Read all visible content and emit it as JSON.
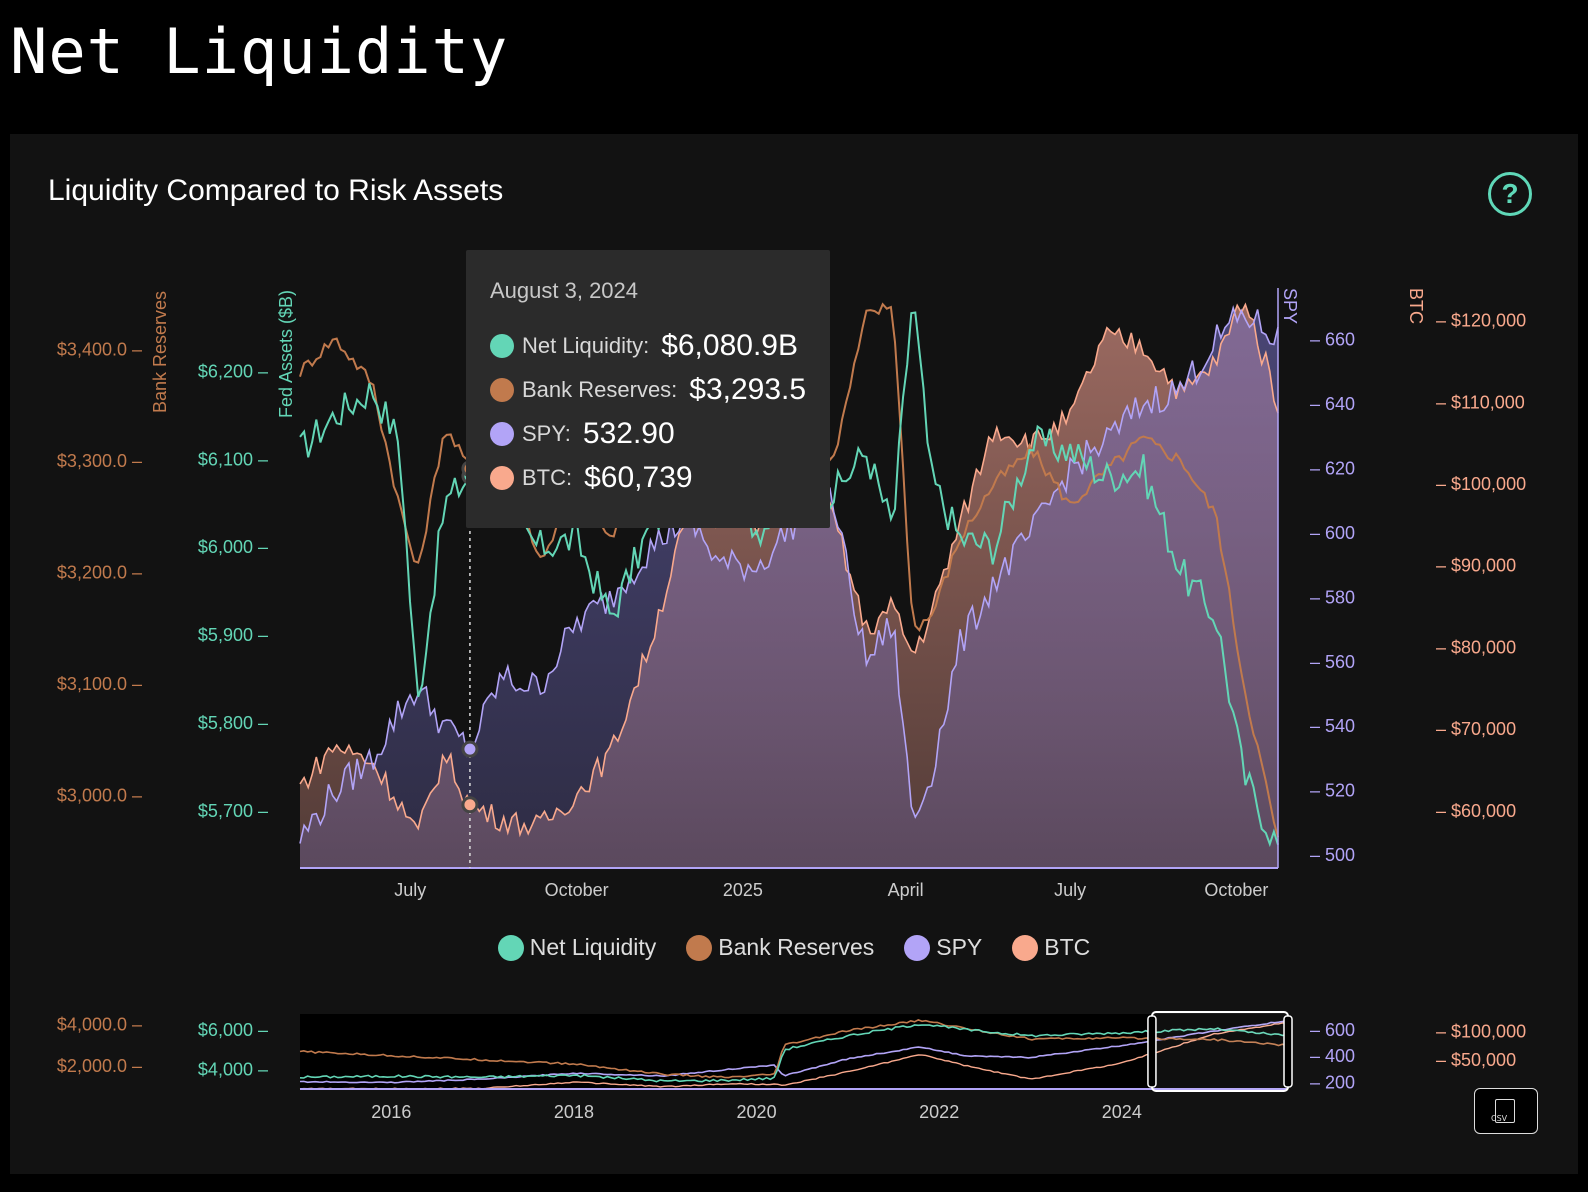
{
  "page": {
    "title": "Net Liquidity"
  },
  "card": {
    "title": "Liquidity Compared to Risk Assets",
    "help_glyph": "?"
  },
  "colors": {
    "net_liquidity": "#63d6b6",
    "bank_reserves": "#c17a4d",
    "spy": "#b2a4f7",
    "btc": "#f9a98d",
    "background": "#121212"
  },
  "tooltip": {
    "date": "August 3, 2024",
    "rows": [
      {
        "label": "Net Liquidity:",
        "value": "$6,080.9B"
      },
      {
        "label": "Bank Reserves:",
        "value": "$3,293.5"
      },
      {
        "label": "SPY:",
        "value": "532.90"
      },
      {
        "label": "BTC:",
        "value": "$60,739"
      }
    ]
  },
  "legend": [
    "Net Liquidity",
    "Bank Reserves",
    "SPY",
    "BTC"
  ],
  "export": {
    "label": "CSV"
  },
  "chart_data": [
    {
      "type": "line",
      "title": "Liquidity Compared to Risk Assets",
      "x_ticks": [
        "July",
        "October",
        "2025",
        "April",
        "July",
        "October"
      ],
      "x_range": [
        "2024-05-01",
        "2025-10-24"
      ],
      "hover_date": "2024-08-03",
      "axes": {
        "bank_reserves": {
          "label": "Bank Reserves",
          "ticks": [
            "$3,000.0",
            "$3,100.0",
            "$3,200.0",
            "$3,300.0",
            "$3,400.0"
          ],
          "tick_values": [
            3000,
            3100,
            3200,
            3300,
            3400
          ],
          "range": [
            2935,
            3455
          ]
        },
        "fed_assets": {
          "label": "Fed Assets ($B)",
          "ticks": [
            "$5,700",
            "$5,800",
            "$5,900",
            "$6,000",
            "$6,100",
            "$6,200"
          ],
          "tick_values": [
            5700,
            5800,
            5900,
            6000,
            6100,
            6200
          ],
          "range": [
            5635,
            6295
          ]
        },
        "spy": {
          "label": "SPY",
          "ticks": [
            "500",
            "520",
            "540",
            "560",
            "580",
            "600",
            "620",
            "640",
            "660"
          ],
          "tick_values": [
            500,
            520,
            540,
            560,
            580,
            600,
            620,
            640,
            660
          ],
          "range": [
            496,
            676
          ]
        },
        "btc": {
          "label": "BTC",
          "ticks": [
            "$60,000",
            "$70,000",
            "$80,000",
            "$90,000",
            "$100,000",
            "$110,000",
            "$120,000"
          ],
          "tick_values": [
            60000,
            70000,
            80000,
            90000,
            100000,
            110000,
            120000
          ],
          "range": [
            53000,
            124000
          ]
        }
      },
      "series": [
        {
          "name": "Net Liquidity",
          "dates": [
            "2024-05-01",
            "2024-05-20",
            "2024-06-10",
            "2024-06-25",
            "2024-07-05",
            "2024-07-20",
            "2024-08-03",
            "2024-08-20",
            "2024-09-10",
            "2024-10-01",
            "2024-10-20",
            "2024-11-10",
            "2024-12-01",
            "2024-12-20",
            "2025-01-10",
            "2025-02-01",
            "2025-02-20",
            "2025-03-10",
            "2025-03-25",
            "2025-04-05",
            "2025-04-15",
            "2025-05-01",
            "2025-05-20",
            "2025-06-10",
            "2025-07-01",
            "2025-07-20",
            "2025-08-10",
            "2025-09-01",
            "2025-09-20",
            "2025-10-05",
            "2025-10-24"
          ],
          "values": [
            6110,
            6150,
            6180,
            6120,
            5820,
            6050,
            6081,
            6040,
            6000,
            6010,
            5920,
            6020,
            6070,
            6080,
            6020,
            6050,
            6060,
            6110,
            6020,
            6290,
            6080,
            6010,
            6000,
            6120,
            6110,
            6080,
            6090,
            5970,
            5920,
            5740,
            5660
          ]
        },
        {
          "name": "Bank Reserves",
          "dates": [
            "2024-05-01",
            "2024-05-20",
            "2024-06-10",
            "2024-06-25",
            "2024-07-05",
            "2024-07-20",
            "2024-08-03",
            "2024-08-20",
            "2024-09-10",
            "2024-10-01",
            "2024-10-20",
            "2024-11-10",
            "2024-12-01",
            "2024-12-20",
            "2025-01-10",
            "2025-02-01",
            "2025-02-20",
            "2025-03-10",
            "2025-03-25",
            "2025-04-05",
            "2025-04-15",
            "2025-05-01",
            "2025-05-20",
            "2025-06-10",
            "2025-07-01",
            "2025-07-20",
            "2025-08-10",
            "2025-09-01",
            "2025-09-20",
            "2025-10-05",
            "2025-10-24"
          ],
          "values": [
            3380,
            3410,
            3370,
            3260,
            3200,
            3330,
            3293,
            3330,
            3210,
            3270,
            3230,
            3300,
            3260,
            3240,
            3310,
            3360,
            3300,
            3430,
            3440,
            3150,
            3160,
            3230,
            3280,
            3310,
            3260,
            3290,
            3320,
            3300,
            3250,
            3100,
            2960
          ]
        },
        {
          "name": "SPY",
          "dates": [
            "2024-05-01",
            "2024-05-20",
            "2024-06-10",
            "2024-06-25",
            "2024-07-05",
            "2024-07-20",
            "2024-08-03",
            "2024-08-20",
            "2024-09-10",
            "2024-10-01",
            "2024-10-20",
            "2024-11-10",
            "2024-12-01",
            "2024-12-20",
            "2025-01-10",
            "2025-02-01",
            "2025-02-20",
            "2025-03-10",
            "2025-03-25",
            "2025-04-05",
            "2025-04-15",
            "2025-05-01",
            "2025-05-20",
            "2025-06-10",
            "2025-07-01",
            "2025-07-20",
            "2025-08-10",
            "2025-09-01",
            "2025-09-20",
            "2025-10-05",
            "2025-10-24"
          ],
          "values": [
            505,
            520,
            530,
            545,
            552,
            540,
            532.9,
            555,
            552,
            572,
            580,
            595,
            605,
            590,
            590,
            605,
            610,
            560,
            572,
            510,
            525,
            565,
            585,
            600,
            620,
            628,
            640,
            645,
            660,
            668,
            660
          ]
        },
        {
          "name": "BTC",
          "dates": [
            "2024-05-01",
            "2024-05-20",
            "2024-06-10",
            "2024-06-25",
            "2024-07-05",
            "2024-07-20",
            "2024-08-03",
            "2024-08-20",
            "2024-09-10",
            "2024-10-01",
            "2024-10-20",
            "2024-11-10",
            "2024-12-01",
            "2024-12-20",
            "2025-01-10",
            "2025-02-01",
            "2025-02-20",
            "2025-03-10",
            "2025-03-25",
            "2025-04-05",
            "2025-04-15",
            "2025-05-01",
            "2025-05-20",
            "2025-06-10",
            "2025-07-01",
            "2025-07-20",
            "2025-08-10",
            "2025-09-01",
            "2025-09-20",
            "2025-10-05",
            "2025-10-24"
          ],
          "values": [
            63000,
            68000,
            66000,
            61000,
            57000,
            67000,
            60739,
            59000,
            58000,
            62000,
            67000,
            80000,
            96000,
            100000,
            94000,
            102000,
            96000,
            82000,
            85000,
            79000,
            84000,
            95000,
            107000,
            105000,
            108000,
            118000,
            117000,
            111000,
            115000,
            123000,
            110000
          ]
        }
      ]
    },
    {
      "type": "line",
      "title": "",
      "x_ticks": [
        "2016",
        "2018",
        "2020",
        "2022",
        "2024"
      ],
      "x_range": [
        "2015-01-01",
        "2025-10-24"
      ],
      "selection_range": [
        "2024-05-01",
        "2025-10-24"
      ],
      "axes": {
        "bank_reserves": {
          "ticks": [
            "$2,000.0",
            "$4,000.0"
          ],
          "tick_values": [
            2000,
            4000
          ]
        },
        "fed_assets": {
          "ticks": [
            "$4,000",
            "$6,000"
          ],
          "tick_values": [
            4000,
            6000
          ]
        },
        "spy": {
          "ticks": [
            "200",
            "400",
            "600"
          ],
          "tick_values": [
            200,
            400,
            600
          ]
        },
        "btc": {
          "ticks": [
            "$50,000",
            "$100,000"
          ],
          "tick_values": [
            50000,
            100000
          ]
        }
      },
      "series": [
        {
          "name": "Net Liquidity",
          "x": [
            2015.0,
            2016.0,
            2017.0,
            2018.0,
            2019.0,
            2019.7,
            2020.2,
            2020.3,
            2021.0,
            2021.8,
            2022.3,
            2023.0,
            2024.0,
            2025.0,
            2025.8
          ],
          "values": [
            3600,
            3650,
            3600,
            3700,
            3400,
            3450,
            3550,
            5000,
            5700,
            6300,
            6000,
            5700,
            5850,
            6050,
            5700
          ]
        },
        {
          "name": "Bank Reserves",
          "x": [
            2015.0,
            2016.0,
            2017.0,
            2018.0,
            2019.0,
            2019.7,
            2020.2,
            2020.3,
            2021.0,
            2021.8,
            2022.3,
            2023.0,
            2024.0,
            2025.0,
            2025.8
          ],
          "values": [
            2700,
            2500,
            2300,
            2100,
            1600,
            1450,
            1600,
            3000,
            3700,
            4200,
            3800,
            3300,
            3350,
            3280,
            3000
          ]
        },
        {
          "name": "SPY",
          "x": [
            2015.0,
            2016.0,
            2017.0,
            2018.0,
            2019.0,
            2019.7,
            2020.2,
            2020.3,
            2021.0,
            2021.8,
            2022.3,
            2023.0,
            2024.0,
            2025.0,
            2025.8
          ],
          "values": [
            205,
            200,
            225,
            270,
            250,
            300,
            330,
            250,
            380,
            470,
            400,
            390,
            480,
            590,
            668
          ]
        },
        {
          "name": "BTC",
          "x": [
            2015.0,
            2016.0,
            2017.0,
            2018.0,
            2019.0,
            2019.7,
            2020.2,
            2020.3,
            2021.0,
            2021.8,
            2022.3,
            2023.0,
            2024.0,
            2025.0,
            2025.8
          ],
          "values": [
            300,
            400,
            1000,
            12000,
            4000,
            9000,
            8000,
            6000,
            30000,
            60000,
            40000,
            17000,
            45000,
            95000,
            115000
          ]
        }
      ]
    }
  ]
}
